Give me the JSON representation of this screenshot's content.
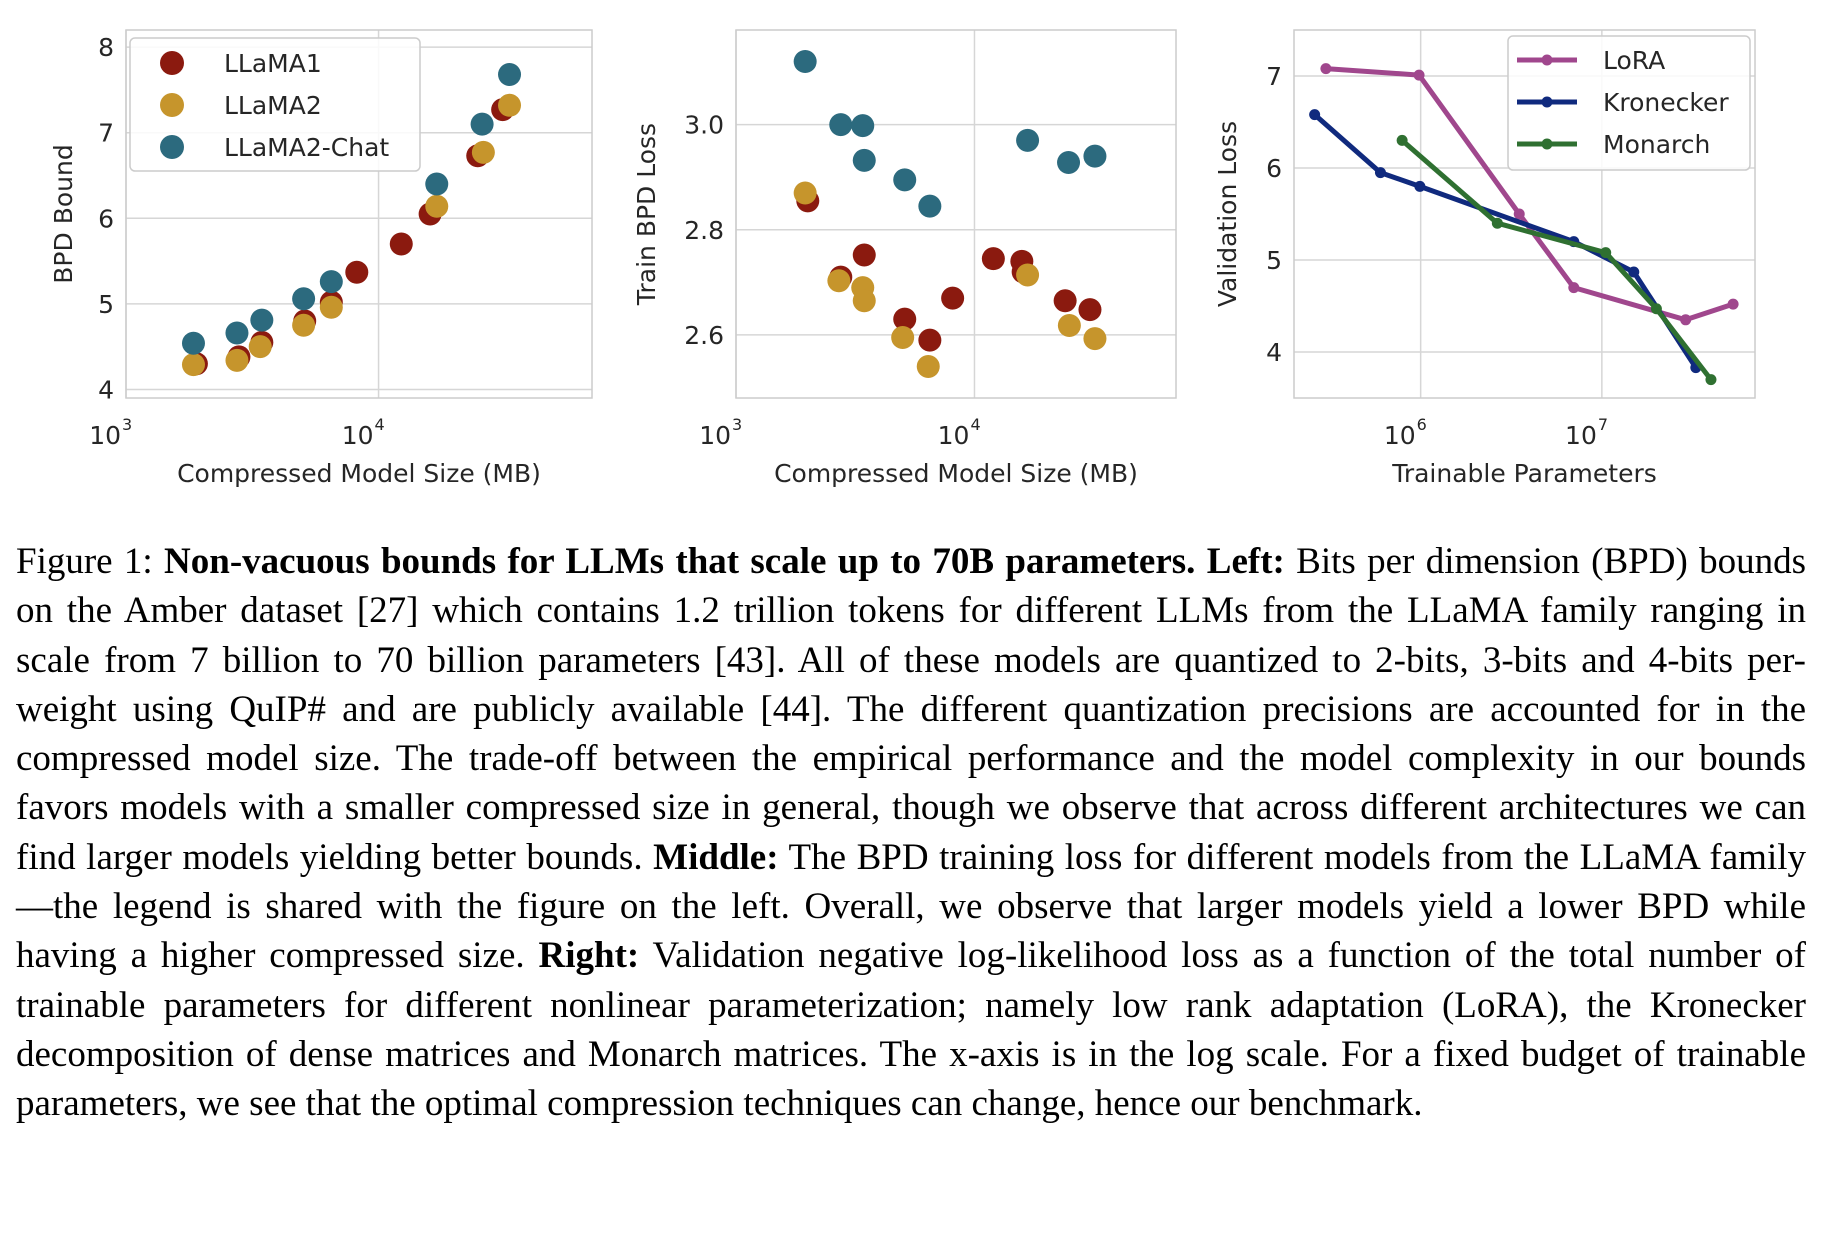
{
  "chart_data": [
    {
      "type": "scatter",
      "xlabel": "Compressed Model Size (MB)",
      "ylabel": "BPD Bound",
      "xscale": "log",
      "xlim": [
        1000,
        70000
      ],
      "ylim": [
        3.9,
        8.2
      ],
      "x_ticks": [
        {
          "base": "10",
          "exp": "3"
        },
        {
          "base": "10",
          "exp": "4"
        }
      ],
      "y_ticks": [
        "4",
        "5",
        "6",
        "7",
        "8"
      ],
      "grid": true,
      "legend": "top-left",
      "series": [
        {
          "name": "LLaMA1",
          "color": "#8b1a0f",
          "points": [
            [
              1900,
              4.3
            ],
            [
              2800,
              4.38
            ],
            [
              3450,
              4.55
            ],
            [
              5100,
              4.8
            ],
            [
              6500,
              5.02
            ],
            [
              8200,
              5.37
            ],
            [
              12300,
              5.7
            ],
            [
              16000,
              6.05
            ],
            [
              24700,
              6.73
            ],
            [
              31000,
              7.27
            ]
          ]
        },
        {
          "name": "LLaMA2",
          "color": "#c6952c",
          "points": [
            [
              1850,
              4.29
            ],
            [
              2750,
              4.34
            ],
            [
              3400,
              4.5
            ],
            [
              5050,
              4.75
            ],
            [
              6500,
              4.96
            ],
            [
              17000,
              6.14
            ],
            [
              26000,
              6.77
            ],
            [
              33000,
              7.32
            ]
          ]
        },
        {
          "name": "LLaMA2-Chat",
          "color": "#2c6a7e",
          "points": [
            [
              1850,
              4.54
            ],
            [
              2750,
              4.66
            ],
            [
              3450,
              4.81
            ],
            [
              5050,
              5.06
            ],
            [
              6500,
              5.26
            ],
            [
              17000,
              6.4
            ],
            [
              25700,
              7.1
            ],
            [
              33000,
              7.68
            ]
          ]
        }
      ]
    },
    {
      "type": "scatter",
      "xlabel": "Compressed Model Size (MB)",
      "ylabel": "Train BPD Loss",
      "xscale": "log",
      "xlim": [
        1000,
        70000
      ],
      "ylim": [
        2.48,
        3.18
      ],
      "x_ticks": [
        {
          "base": "10",
          "exp": "3"
        },
        {
          "base": "10",
          "exp": "4"
        }
      ],
      "y_ticks": [
        "2.6",
        "2.8",
        "3.0"
      ],
      "grid": true,
      "series": [
        {
          "name": "LLaMA1",
          "color": "#8b1a0f",
          "points": [
            [
              2000,
              2.855
            ],
            [
              2750,
              2.71
            ],
            [
              3450,
              2.752
            ],
            [
              5100,
              2.63
            ],
            [
              6500,
              2.59
            ],
            [
              8100,
              2.67
            ],
            [
              12000,
              2.745
            ],
            [
              15800,
              2.74
            ],
            [
              16000,
              2.72
            ],
            [
              24000,
              2.665
            ],
            [
              30500,
              2.648
            ]
          ]
        },
        {
          "name": "LLaMA2",
          "color": "#c6952c",
          "points": [
            [
              1950,
              2.87
            ],
            [
              2700,
              2.703
            ],
            [
              3400,
              2.69
            ],
            [
              3450,
              2.665
            ],
            [
              5000,
              2.595
            ],
            [
              6400,
              2.54
            ],
            [
              16700,
              2.714
            ],
            [
              25000,
              2.618
            ],
            [
              32000,
              2.593
            ]
          ]
        },
        {
          "name": "LLaMA2-Chat",
          "color": "#2c6a7e",
          "points": [
            [
              1950,
              3.12
            ],
            [
              2750,
              3.0
            ],
            [
              3400,
              2.998
            ],
            [
              3450,
              2.932
            ],
            [
              5100,
              2.895
            ],
            [
              6500,
              2.845
            ],
            [
              16700,
              2.97
            ],
            [
              24800,
              2.928
            ],
            [
              32000,
              2.94
            ]
          ]
        }
      ]
    },
    {
      "type": "line",
      "xlabel": "Trainable Parameters",
      "ylabel": "Validation Loss",
      "xscale": "log",
      "xlim": [
        200000,
        70000000
      ],
      "ylim": [
        3.5,
        7.5
      ],
      "x_ticks": [
        {
          "base": "10",
          "exp": "6"
        },
        {
          "base": "10",
          "exp": "7"
        }
      ],
      "y_ticks": [
        "4",
        "5",
        "6",
        "7"
      ],
      "grid": true,
      "legend": "top-right",
      "series": [
        {
          "name": "LoRA",
          "color": "#a0478d",
          "points": [
            [
              300000,
              7.08
            ],
            [
              980000,
              7.01
            ],
            [
              3500000,
              5.5
            ],
            [
              7000000,
              4.7
            ],
            [
              29000000,
              4.35
            ],
            [
              53000000,
              4.52
            ]
          ]
        },
        {
          "name": "Kronecker",
          "color": "#102a7e",
          "points": [
            [
              260000,
              6.58
            ],
            [
              600000,
              5.95
            ],
            [
              990000,
              5.8
            ],
            [
              7000000,
              5.2
            ],
            [
              15000000,
              4.87
            ],
            [
              33000000,
              3.83
            ]
          ]
        },
        {
          "name": "Monarch",
          "color": "#2f7031",
          "points": [
            [
              790000,
              6.3
            ],
            [
              2650000,
              5.4
            ],
            [
              10500000,
              5.08
            ],
            [
              20000000,
              4.47
            ],
            [
              40000000,
              3.7
            ]
          ]
        }
      ]
    }
  ],
  "caption": {
    "lead": "Figure 1: ",
    "title": "Non-vacuous bounds for LLMs that scale up to 70B parameters.",
    "left_label": "Left:",
    "left_text": "Bits per dimension (BPD) bounds on the Amber dataset [27] which contains 1.2 trillion tokens for different LLMs from the LLaMA family ranging in scale from 7 billion to 70 billion parameters [43]. All of these models are quantized to 2-bits, 3-bits and 4-bits per-weight using QuIP# and are publicly available [44]. The different quantization precisions are accounted for in the compressed model size. The trade-off between the empirical performance and the model complexity in our bounds favors models with a smaller compressed size in general, though we observe that across different architectures we can find larger models yielding better bounds.",
    "middle_label": "Middle:",
    "middle_text": "The BPD training loss for different models from the LLaMA family—the legend is shared with the figure on the left. Overall, we observe that larger models yield a lower BPD while having a higher compressed size.",
    "right_label": "Right:",
    "right_text": "Validation negative log-likelihood loss as a function of the total number of trainable parameters for different nonlinear parameterization; namely low rank adaptation (LoRA), the Kronecker decomposition of dense matrices and Monarch matrices. The x-axis is in the log scale. For a fixed budget of trainable parameters, we see that the optimal compression techniques can change, hence our benchmark."
  }
}
